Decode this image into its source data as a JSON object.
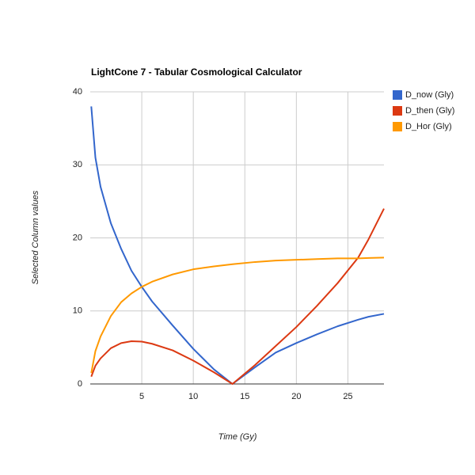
{
  "chart_data": {
    "type": "line",
    "title": "LightCone 7 - Tabular Cosmological Calculator",
    "x_label": "Time (Gy)",
    "y_label": "Selected Column values",
    "x": [
      0.1,
      0.5,
      1,
      2,
      3,
      4,
      5,
      6,
      8,
      10,
      12,
      13.8,
      16,
      18,
      20,
      22,
      24,
      26,
      27,
      28.5
    ],
    "series": [
      {
        "name": "D_now (Gly)",
        "color": "#3366cc",
        "values": [
          38,
          31,
          27,
          22,
          18.5,
          15.5,
          13.3,
          11.3,
          8,
          4.8,
          2,
          0,
          2.3,
          4.3,
          5.6,
          6.8,
          7.9,
          8.8,
          9.2,
          9.6
        ]
      },
      {
        "name": "D_then (Gly)",
        "color": "#dc3912",
        "values": [
          1.0,
          2.5,
          3.5,
          4.9,
          5.6,
          5.85,
          5.8,
          5.5,
          4.6,
          3.2,
          1.6,
          0,
          2.6,
          5.2,
          7.8,
          10.7,
          13.8,
          17.3,
          19.8,
          24.0
        ]
      },
      {
        "name": "D_Hor (Gly)",
        "color": "#ff9900",
        "values": [
          1.5,
          4.5,
          6.5,
          9.3,
          11.2,
          12.4,
          13.3,
          14.0,
          15.0,
          15.7,
          16.1,
          16.4,
          16.7,
          16.9,
          17.0,
          17.1,
          17.2,
          17.2,
          17.25,
          17.3
        ]
      }
    ],
    "xlim": [
      0,
      28.5
    ],
    "ylim": [
      0,
      40
    ],
    "xticks": [
      5,
      10,
      15,
      20,
      25
    ],
    "yticks": [
      0,
      10,
      20,
      30,
      40
    ],
    "grid": true,
    "legend": "right"
  }
}
